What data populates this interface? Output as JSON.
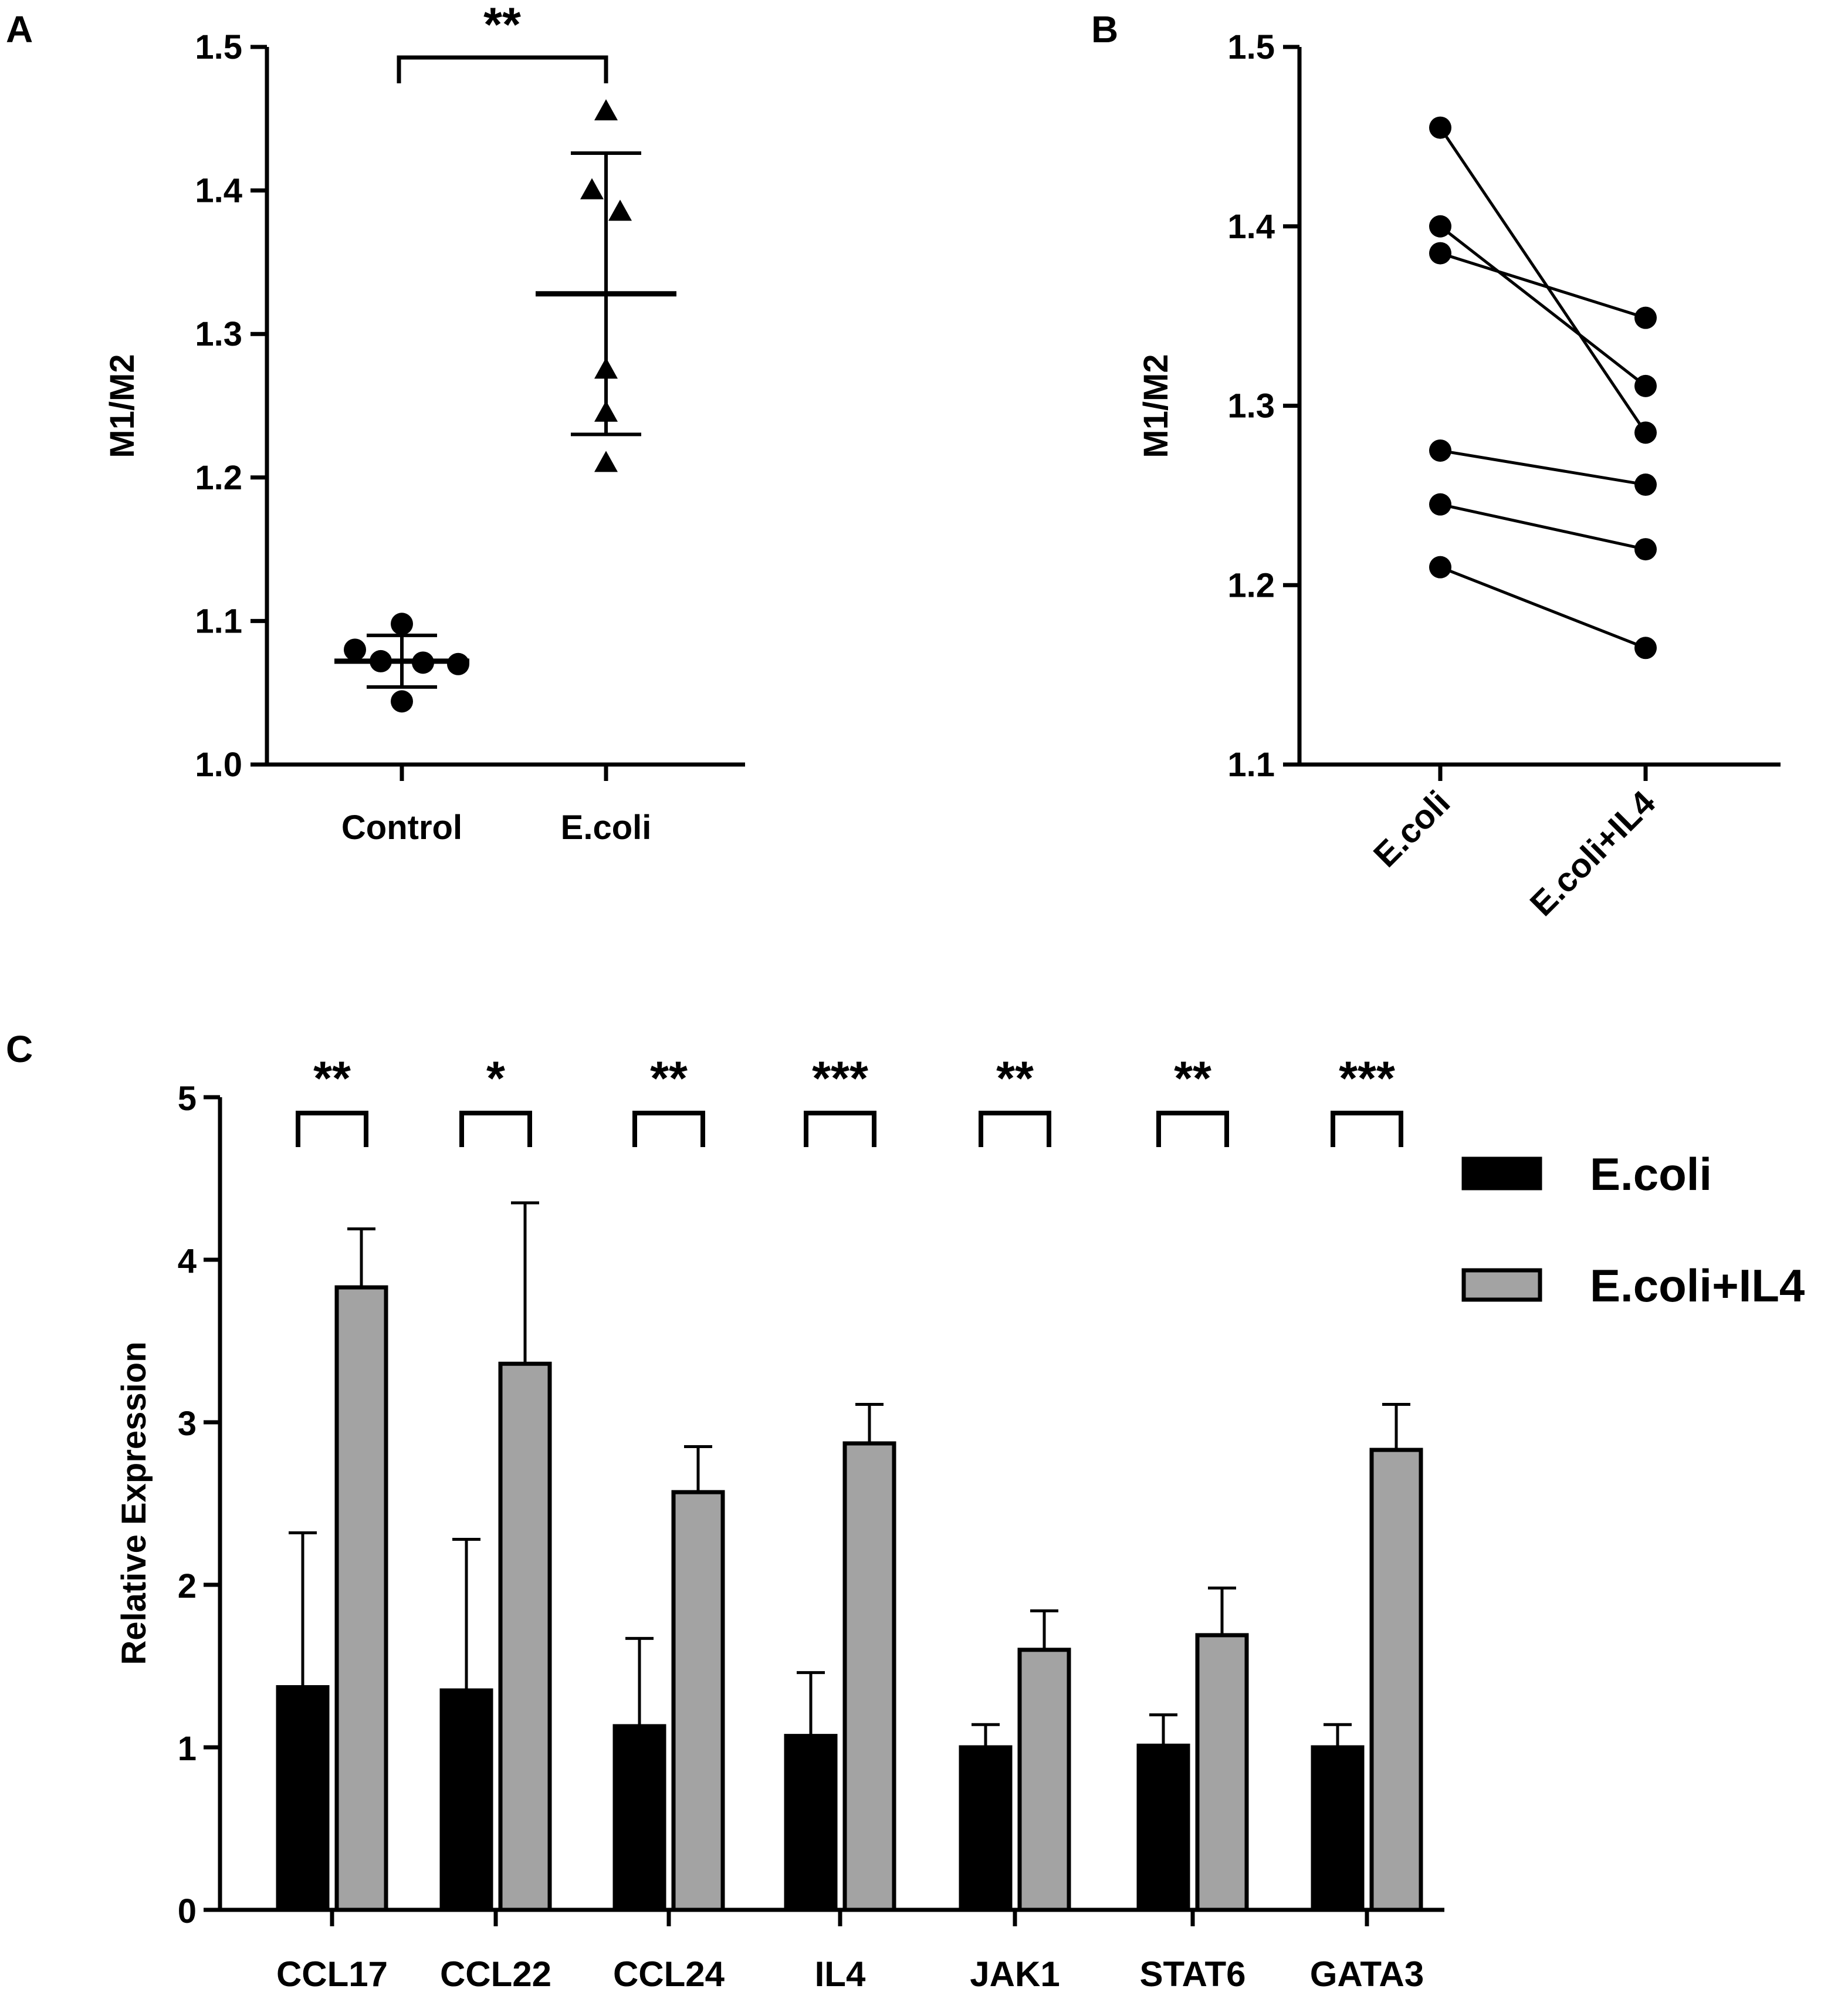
{
  "chart_data": [
    {
      "panel": "A",
      "type": "scatter",
      "title": "",
      "ylabel": "M1/M2",
      "xlabel": "",
      "ylim": [
        1.0,
        1.5
      ],
      "yticks": [
        "1.0",
        "1.1",
        "1.2",
        "1.3",
        "1.4",
        "1.5"
      ],
      "categories": [
        "Control",
        "E.coli"
      ],
      "series": [
        {
          "name": "Control",
          "marker": "circle",
          "values": [
            1.08,
            1.098,
            1.072,
            1.071,
            1.07,
            1.044
          ],
          "mean": 1.072,
          "sd": 0.018
        },
        {
          "name": "E.coli",
          "marker": "triangle",
          "values": [
            1.455,
            1.4,
            1.385,
            1.275,
            1.245,
            1.21
          ],
          "mean": 1.328,
          "sd": 0.098
        }
      ],
      "significance": "**"
    },
    {
      "panel": "B",
      "type": "line",
      "title": "",
      "ylabel": "M1/M2",
      "xlabel": "",
      "ylim": [
        1.1,
        1.5
      ],
      "yticks": [
        "1.1",
        "1.2",
        "1.3",
        "1.4",
        "1.5"
      ],
      "categories": [
        "E.coli",
        "E.coli+IL4"
      ],
      "pairs": [
        [
          1.455,
          1.285
        ],
        [
          1.4,
          1.311
        ],
        [
          1.385,
          1.349
        ],
        [
          1.275,
          1.256
        ],
        [
          1.245,
          1.22
        ],
        [
          1.21,
          1.165
        ]
      ]
    },
    {
      "panel": "C",
      "type": "bar",
      "title": "",
      "ylabel": "Relative Expression",
      "xlabel": "",
      "ylim": [
        0,
        5
      ],
      "yticks": [
        "0",
        "1",
        "2",
        "3",
        "4",
        "5"
      ],
      "categories": [
        "CCL17",
        "CCL22",
        "CCL24",
        "IL4",
        "JAK1",
        "STAT6",
        "GATA3"
      ],
      "series": [
        {
          "name": "E.coli",
          "color": "#000000",
          "values": [
            1.37,
            1.35,
            1.13,
            1.07,
            1.0,
            1.01,
            1.0
          ],
          "errors": [
            0.95,
            0.93,
            0.54,
            0.39,
            0.14,
            0.19,
            0.14
          ]
        },
        {
          "name": "E.coli+IL4",
          "color": "#a3a3a3",
          "values": [
            3.83,
            3.36,
            2.57,
            2.87,
            1.6,
            1.69,
            2.83
          ],
          "errors": [
            0.36,
            0.99,
            0.28,
            0.24,
            0.24,
            0.29,
            0.28
          ]
        }
      ],
      "significance": [
        "**",
        "*",
        "**",
        "***",
        "**",
        "**",
        "***"
      ],
      "legend": [
        "E.coli",
        "E.coli+IL4"
      ],
      "legend_position": "right"
    }
  ],
  "panels": {
    "a": "A",
    "b": "B",
    "c": "C"
  }
}
